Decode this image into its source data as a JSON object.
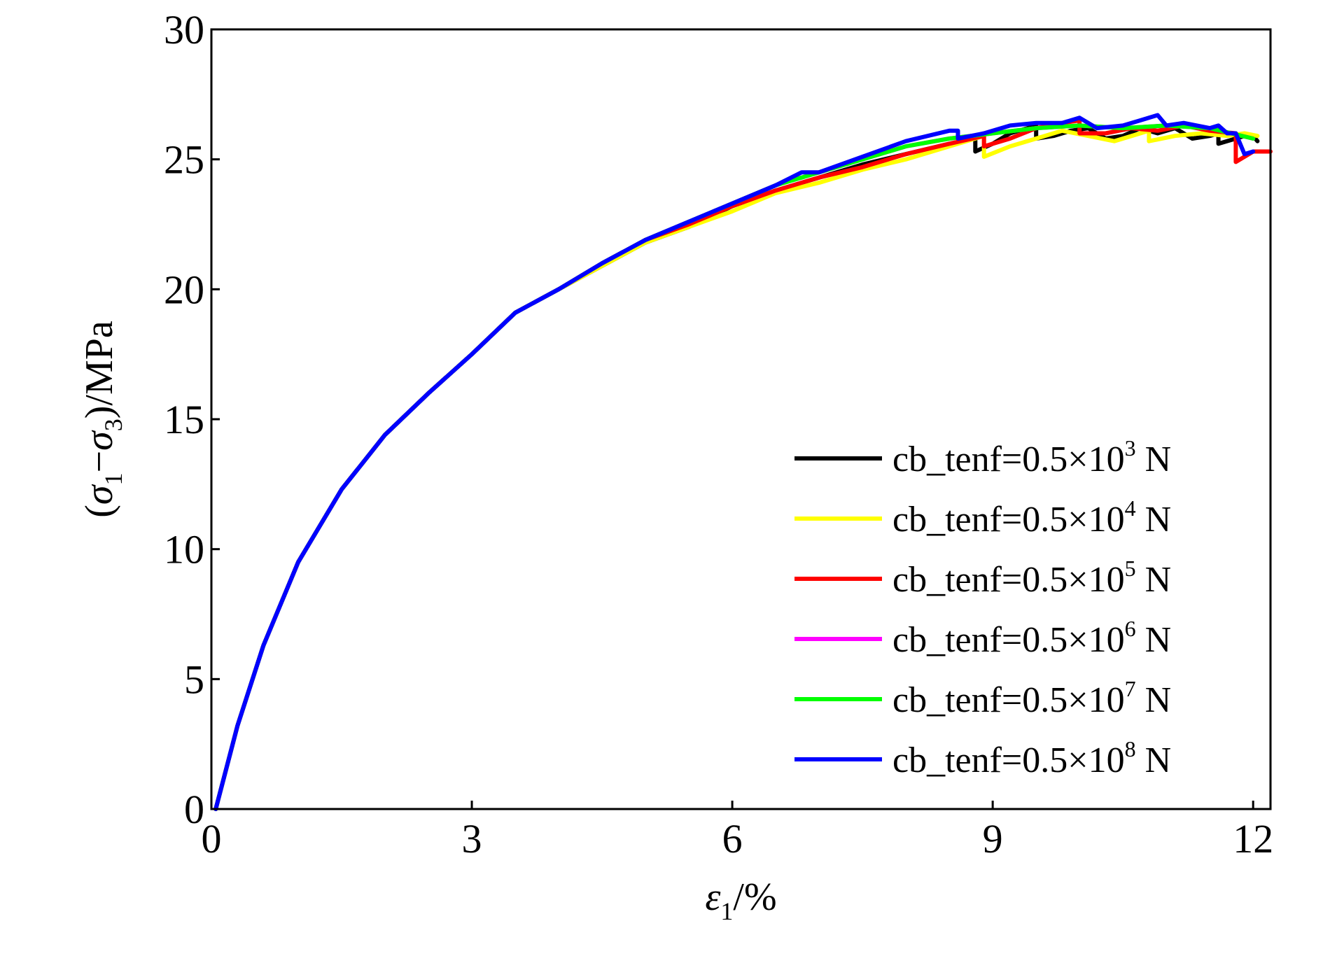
{
  "chart_data": {
    "type": "line",
    "title": "",
    "xlabel": {
      "symbol": "ε",
      "subscript": "1",
      "suffix": "/%"
    },
    "ylabel": {
      "open": "(",
      "sym1": "σ",
      "sub1": "1",
      "dash": "−",
      "sym2": "σ",
      "sub2": "3",
      "suffix": ")/MPa"
    },
    "xlim": [
      0,
      12.2
    ],
    "ylim": [
      0,
      30
    ],
    "xticks": [
      0,
      3,
      6,
      9,
      12
    ],
    "yticks": [
      0,
      5,
      10,
      15,
      20,
      25,
      30
    ],
    "grid": false,
    "legend_position": "lower-right",
    "series": [
      {
        "name": "cb_tenf=0.5×10³ N",
        "label_main": "cb_tenf=0.5×10",
        "label_exp": "3",
        "label_unit": " N",
        "color": "#000000",
        "x": [
          0.05,
          0.3,
          0.6,
          1.0,
          1.5,
          2.0,
          2.5,
          3.0,
          3.5,
          4.0,
          4.5,
          5.0,
          5.5,
          6.0,
          6.5,
          7.0,
          7.5,
          8.0,
          8.5,
          8.8,
          8.8,
          9.0,
          9.2,
          9.4,
          9.5,
          9.5,
          9.7,
          9.9,
          10.1,
          10.3,
          10.5,
          10.7,
          10.9,
          11.1,
          11.3,
          11.5,
          11.6,
          11.6,
          11.8,
          11.9,
          12.0,
          12.05
        ],
        "y": [
          0,
          3.2,
          6.3,
          9.5,
          12.3,
          14.4,
          16.0,
          17.5,
          19.1,
          20.0,
          20.9,
          21.8,
          22.4,
          23.2,
          23.8,
          24.3,
          24.8,
          25.2,
          25.6,
          25.8,
          25.3,
          25.6,
          26.0,
          26.2,
          26.3,
          25.8,
          25.9,
          26.1,
          26.2,
          25.8,
          25.9,
          26.2,
          26.0,
          26.2,
          25.8,
          25.9,
          26.0,
          25.6,
          25.8,
          25.9,
          25.9,
          25.7
        ]
      },
      {
        "name": "cb_tenf=0.5×10⁴ N",
        "label_main": "cb_tenf=0.5×10",
        "label_exp": "4",
        "label_unit": " N",
        "color": "#ffff00",
        "x": [
          0.05,
          0.3,
          0.6,
          1.0,
          1.5,
          2.0,
          2.5,
          3.0,
          3.5,
          4.0,
          4.5,
          5.0,
          5.5,
          6.0,
          6.5,
          7.0,
          7.5,
          8.0,
          8.5,
          8.9,
          8.9,
          9.2,
          9.5,
          9.8,
          10.1,
          10.4,
          10.7,
          10.8,
          10.8,
          11.1,
          11.4,
          11.7,
          11.9,
          12.05
        ],
        "y": [
          0,
          3.2,
          6.3,
          9.5,
          12.3,
          14.4,
          16.0,
          17.5,
          19.1,
          20.0,
          20.9,
          21.8,
          22.4,
          23.0,
          23.7,
          24.1,
          24.6,
          25.0,
          25.5,
          25.9,
          25.1,
          25.5,
          25.8,
          26.1,
          25.9,
          25.7,
          26.0,
          26.1,
          25.7,
          25.9,
          26.0,
          25.9,
          26.0,
          25.9
        ]
      },
      {
        "name": "cb_tenf=0.5×10⁵ N",
        "label_main": "cb_tenf=0.5×10",
        "label_exp": "5",
        "label_unit": " N",
        "color": "#ff0000",
        "x": [
          0.05,
          0.3,
          0.6,
          1.0,
          1.5,
          2.0,
          2.5,
          3.0,
          3.5,
          4.0,
          4.5,
          5.0,
          5.5,
          6.0,
          6.5,
          7.0,
          7.5,
          8.0,
          8.5,
          8.9,
          8.9,
          9.2,
          9.5,
          9.8,
          10.0,
          10.0,
          10.3,
          10.6,
          10.9,
          11.2,
          11.5,
          11.8,
          11.8,
          12.0,
          12.2
        ],
        "y": [
          0,
          3.2,
          6.3,
          9.5,
          12.3,
          14.4,
          16.0,
          17.5,
          19.1,
          20.0,
          21.0,
          21.9,
          22.5,
          23.2,
          23.8,
          24.3,
          24.7,
          25.2,
          25.6,
          25.9,
          25.5,
          25.8,
          26.2,
          26.4,
          26.5,
          26.0,
          26.0,
          26.2,
          26.1,
          26.3,
          26.1,
          26.0,
          24.9,
          25.3,
          25.3
        ]
      },
      {
        "name": "cb_tenf=0.5×10⁶ N",
        "label_main": "cb_tenf=0.5×10",
        "label_exp": "6",
        "label_unit": " N",
        "color": "#ff00ff",
        "x": [
          0.05,
          0.3,
          0.6,
          1.0,
          1.5,
          2.0,
          2.5,
          3.0,
          3.5,
          4.0,
          4.5,
          5.0,
          5.5,
          6.0,
          6.5,
          7.0,
          7.5,
          8.0,
          8.5,
          9.0,
          9.5,
          10.0,
          10.5,
          11.0,
          11.5,
          12.0
        ],
        "y": [
          0,
          3.2,
          6.3,
          9.5,
          12.3,
          14.4,
          16.0,
          17.5,
          19.1,
          20.0,
          21.0,
          21.9,
          22.6,
          23.3,
          24.0,
          24.5,
          25.0,
          25.5,
          25.8,
          26.0,
          26.2,
          26.3,
          26.2,
          26.3,
          26.2,
          25.8
        ]
      },
      {
        "name": "cb_tenf=0.5×10⁷ N",
        "label_main": "cb_tenf=0.5×10",
        "label_exp": "7",
        "label_unit": " N",
        "color": "#00ff00",
        "x": [
          0.05,
          0.3,
          0.6,
          1.0,
          1.5,
          2.0,
          2.5,
          3.0,
          3.5,
          4.0,
          4.5,
          5.0,
          5.5,
          6.0,
          6.5,
          7.0,
          7.5,
          8.0,
          8.5,
          9.0,
          9.5,
          10.0,
          10.5,
          11.0,
          11.5,
          12.0
        ],
        "y": [
          0,
          3.2,
          6.3,
          9.5,
          12.3,
          14.4,
          16.0,
          17.5,
          19.1,
          20.0,
          21.0,
          21.9,
          22.6,
          23.3,
          24.0,
          24.5,
          25.0,
          25.5,
          25.8,
          26.0,
          26.2,
          26.3,
          26.2,
          26.3,
          26.2,
          25.8
        ]
      },
      {
        "name": "cb_tenf=0.5×10⁸ N",
        "label_main": "cb_tenf=0.5×10",
        "label_exp": "8",
        "label_unit": " N",
        "color": "#0000ff",
        "x": [
          0.05,
          0.3,
          0.6,
          1.0,
          1.5,
          2.0,
          2.5,
          3.0,
          3.5,
          4.0,
          4.5,
          5.0,
          5.5,
          6.0,
          6.5,
          6.8,
          7.0,
          7.5,
          8.0,
          8.5,
          8.6,
          8.6,
          8.9,
          9.2,
          9.5,
          9.8,
          10.0,
          10.2,
          10.5,
          10.7,
          10.9,
          11.0,
          11.2,
          11.5,
          11.6,
          11.7,
          11.8,
          11.9,
          12.0
        ],
        "y": [
          0,
          3.2,
          6.3,
          9.5,
          12.3,
          14.4,
          16.0,
          17.5,
          19.1,
          20.0,
          21.0,
          21.9,
          22.6,
          23.3,
          24.0,
          24.5,
          24.5,
          25.1,
          25.7,
          26.1,
          26.1,
          25.8,
          26.0,
          26.3,
          26.4,
          26.4,
          26.6,
          26.2,
          26.3,
          26.5,
          26.7,
          26.3,
          26.4,
          26.2,
          26.3,
          26.0,
          26.0,
          25.2,
          25.3
        ]
      }
    ]
  }
}
